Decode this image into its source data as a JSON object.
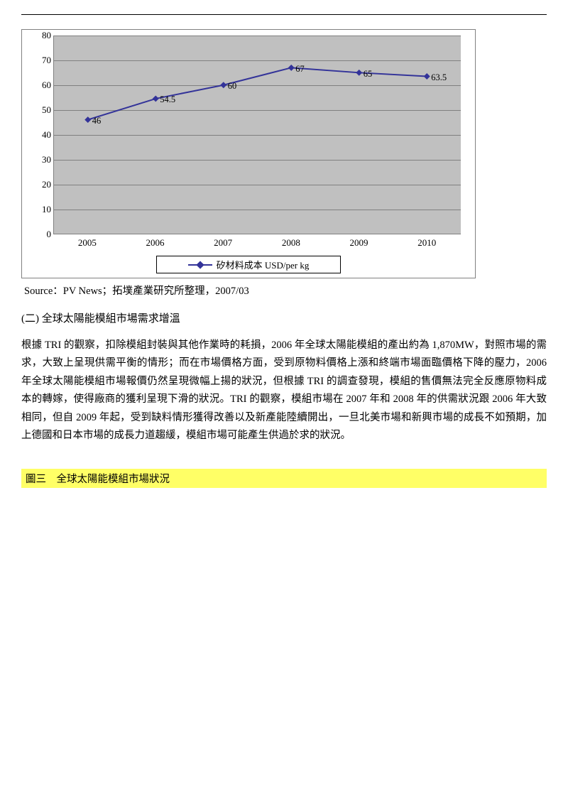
{
  "chart": {
    "type": "line",
    "x_labels": [
      "2005",
      "2006",
      "2007",
      "2008",
      "2009",
      "2010"
    ],
    "values": [
      46,
      54.5,
      60,
      67,
      65,
      63.5
    ],
    "point_labels": [
      "46",
      "54.5",
      "60",
      "67",
      "65",
      "63.5"
    ],
    "ylim": [
      0,
      80
    ],
    "ytick_labels": [
      "0",
      "10",
      "20",
      "30",
      "40",
      "50",
      "60",
      "70",
      "80"
    ],
    "ytick_values": [
      0,
      10,
      20,
      30,
      40,
      50,
      60,
      70,
      80
    ],
    "line_color": "#333399",
    "marker_fill": "#333399",
    "marker_type": "diamond",
    "plot_bg": "#c0c0c0",
    "grid_color": "#808080",
    "legend": "矽材料成本 USD/per kg",
    "label_fontsize": 13
  },
  "source": "Source：PV News；拓墣產業研究所整理，2007/03",
  "sectionTitle": "(二) 全球太陽能模組市場需求增溫",
  "bodyText": "根據 TRI 的觀察，扣除模組封裝與其他作業時的耗損，2006 年全球太陽能模組的產出約為 1,870MW，對照市場的需求，大致上呈現供需平衡的情形；而在市場價格方面，受到原物料價格上漲和終端市場面臨價格下降的壓力，2006 年全球太陽能模組市場報價仍然呈現微幅上揚的狀況，但根據 TRI 的調查發現，模組的售價無法完全反應原物料成本的轉嫁，使得廠商的獲利呈現下滑的狀況。TRI 的觀察，模組市場在 2007 年和 2008 年的供需狀況跟 2006 年大致相同，但自 2009 年起，受到缺料情形獲得改善以及新產能陸續開出，一旦北美市場和新興市場的成長不如預期，加上德國和日本市場的成長力道趨緩，模組市場可能產生供過於求的狀況。",
  "figureLabel": "圖三　全球太陽能模組市場狀況"
}
